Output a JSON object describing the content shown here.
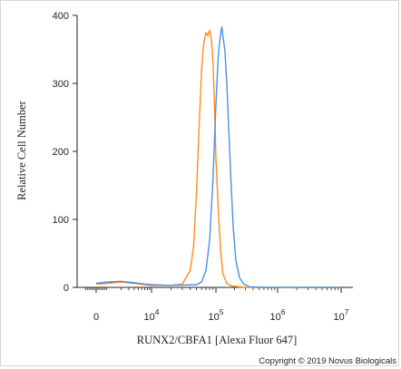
{
  "chart_data": {
    "type": "line",
    "subtype": "flow-cytometry-histogram",
    "xlabel": "RUNX2/CBFA1 [Alexa Fluor 647]",
    "ylabel": "Relative Cell Number",
    "x_scale": "biexponential",
    "ylim": [
      0,
      400
    ],
    "y_ticks": [
      0,
      100,
      200,
      300,
      400
    ],
    "x_ticks": [
      {
        "value": 0,
        "base": "0",
        "exp": ""
      },
      {
        "value": 10000,
        "base": "10",
        "exp": "4"
      },
      {
        "value": 100000,
        "base": "10",
        "exp": "5"
      },
      {
        "value": 1000000,
        "base": "10",
        "exp": "6"
      },
      {
        "value": 10000000,
        "base": "10",
        "exp": "7"
      }
    ],
    "grid": false,
    "legend": "none",
    "series": [
      {
        "color": "#ff8c1a",
        "points": [
          [
            0,
            5
          ],
          [
            1000,
            6
          ],
          [
            2000,
            8
          ],
          [
            4000,
            6
          ],
          [
            7000,
            4
          ],
          [
            10000,
            3
          ],
          [
            20000,
            3
          ],
          [
            30000,
            5
          ],
          [
            40000,
            25
          ],
          [
            45000,
            60
          ],
          [
            50000,
            140
          ],
          [
            55000,
            240
          ],
          [
            60000,
            320
          ],
          [
            65000,
            360
          ],
          [
            70000,
            375
          ],
          [
            75000,
            370
          ],
          [
            80000,
            378
          ],
          [
            85000,
            365
          ],
          [
            90000,
            330
          ],
          [
            95000,
            270
          ],
          [
            100000,
            190
          ],
          [
            110000,
            110
          ],
          [
            120000,
            50
          ],
          [
            130000,
            20
          ],
          [
            150000,
            6
          ],
          [
            180000,
            2
          ],
          [
            300000,
            0
          ],
          [
            10000000,
            0
          ]
        ]
      },
      {
        "color": "#4a90e2",
        "points": [
          [
            0,
            6
          ],
          [
            1000,
            8
          ],
          [
            2000,
            9
          ],
          [
            4000,
            7
          ],
          [
            7000,
            5
          ],
          [
            10000,
            4
          ],
          [
            20000,
            3
          ],
          [
            50000,
            4
          ],
          [
            60000,
            8
          ],
          [
            70000,
            25
          ],
          [
            80000,
            70
          ],
          [
            90000,
            160
          ],
          [
            100000,
            270
          ],
          [
            110000,
            345
          ],
          [
            120000,
            375
          ],
          [
            125000,
            383
          ],
          [
            130000,
            370
          ],
          [
            140000,
            348
          ],
          [
            150000,
            300
          ],
          [
            160000,
            240
          ],
          [
            175000,
            160
          ],
          [
            190000,
            90
          ],
          [
            210000,
            40
          ],
          [
            240000,
            15
          ],
          [
            280000,
            5
          ],
          [
            350000,
            1
          ],
          [
            600000,
            0
          ],
          [
            10000000,
            0
          ]
        ]
      }
    ]
  },
  "copyright": "Copyright © 2019 Novus Biologicals"
}
